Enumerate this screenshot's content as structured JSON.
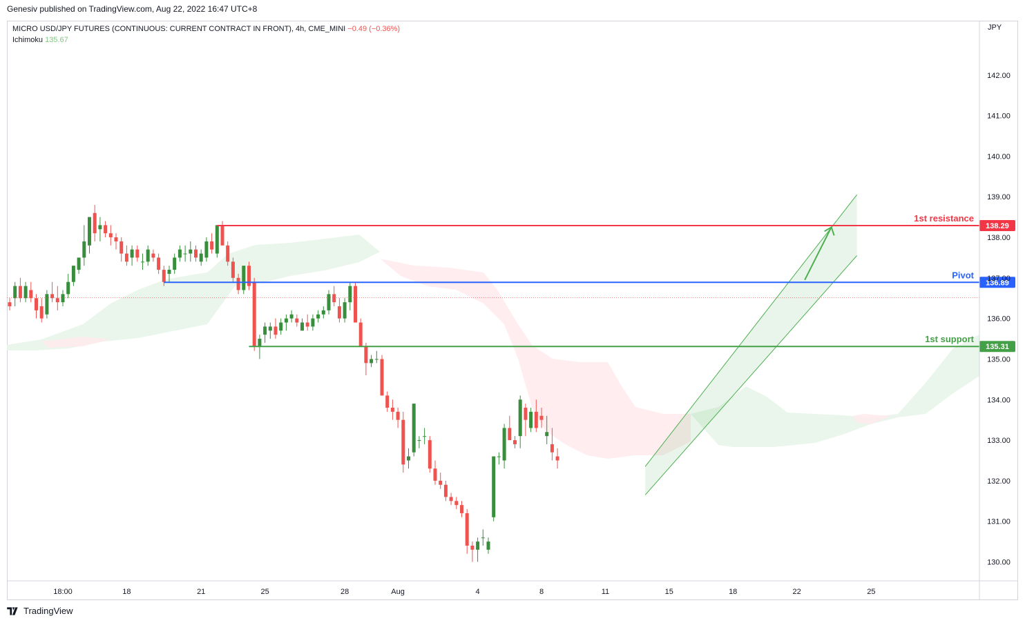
{
  "publisher": "Genesiv published on TradingView.com, Aug 22, 2022 16:47 UTC+8",
  "legend": {
    "symbol": "MICRO USD/JPY FUTURES (CONTINUOUS: CURRENT CONTRACT IN FRONT), 4h, CME_MINI",
    "change": "−0.49 (−0.36%)",
    "indicator_name": "Ichimoku",
    "indicator_value": "135.67"
  },
  "currency": "JPY",
  "footer": {
    "brand": "TradingView"
  },
  "colors": {
    "up": "#388e3c",
    "down": "#ef5350",
    "resistance": "#f23645",
    "pivot": "#2962ff",
    "support": "#43a047",
    "channel": "#4caf50",
    "cloud_bull": "#e8f5e9",
    "cloud_bear": "#ffebee"
  },
  "chart_data": {
    "type": "candlestick",
    "ylim": [
      129.6,
      143.0
    ],
    "y_ticks": [
      "142.00",
      "141.00",
      "140.00",
      "139.00",
      "138.00",
      "137.00",
      "136.00",
      "135.00",
      "134.00",
      "133.00",
      "132.00",
      "131.00",
      "130.00"
    ],
    "x_ticks": [
      {
        "label": "18:00",
        "i": 10
      },
      {
        "label": "18",
        "i": 22
      },
      {
        "label": "21",
        "i": 36
      },
      {
        "label": "25",
        "i": 48
      },
      {
        "label": "28",
        "i": 63
      },
      {
        "label": "Aug",
        "i": 73
      },
      {
        "label": "4",
        "i": 88
      },
      {
        "label": "8",
        "i": 100
      },
      {
        "label": "11",
        "i": 112
      },
      {
        "label": "15",
        "i": 124
      },
      {
        "label": "18",
        "i": 136
      },
      {
        "label": "22",
        "i": 148
      },
      {
        "label": "25",
        "i": 162
      }
    ],
    "levels": [
      {
        "name": "1st resistance",
        "value": 138.29,
        "tag": "138.29",
        "color": "#f23645",
        "start_i": 39
      },
      {
        "name": "Pivot",
        "value": 136.89,
        "tag": "136.89",
        "color": "#2962ff",
        "start_i": 29
      },
      {
        "name": "1st support",
        "value": 135.31,
        "tag": "135.31",
        "color": "#43a047",
        "start_i": 45
      }
    ],
    "last_price": 136.51,
    "channel": {
      "lower": [
        [
          119.5,
          131.65
        ],
        [
          159.3,
          137.55
        ]
      ],
      "upper": [
        [
          119.5,
          132.35
        ],
        [
          159.3,
          139.05
        ]
      ]
    },
    "arrow": {
      "from": [
        149.5,
        136.95
      ],
      "to": [
        154.5,
        138.25
      ]
    },
    "ohlc": [
      [
        136.4,
        136.5,
        136.2,
        136.3
      ],
      [
        136.5,
        136.9,
        136.3,
        136.8
      ],
      [
        136.8,
        137.0,
        136.4,
        136.5
      ],
      [
        136.5,
        136.9,
        136.4,
        136.8
      ],
      [
        136.7,
        136.9,
        136.4,
        136.5
      ],
      [
        136.5,
        136.6,
        136.0,
        136.2
      ],
      [
        136.3,
        136.5,
        135.9,
        136.0
      ],
      [
        136.1,
        136.7,
        136.0,
        136.6
      ],
      [
        136.6,
        136.9,
        136.4,
        136.5
      ],
      [
        136.5,
        136.8,
        136.2,
        136.4
      ],
      [
        136.4,
        136.7,
        136.3,
        136.6
      ],
      [
        136.6,
        137.1,
        136.5,
        136.9
      ],
      [
        136.9,
        137.3,
        136.8,
        137.3
      ],
      [
        137.2,
        137.5,
        137.1,
        137.5
      ],
      [
        137.5,
        138.3,
        137.3,
        137.9
      ],
      [
        137.8,
        138.5,
        137.6,
        138.5
      ],
      [
        138.6,
        138.8,
        137.9,
        138.1
      ],
      [
        138.2,
        138.5,
        137.9,
        138.3
      ],
      [
        138.3,
        138.4,
        138.0,
        138.1
      ],
      [
        138.1,
        138.3,
        137.8,
        138.0
      ],
      [
        138.0,
        138.1,
        137.7,
        137.9
      ],
      [
        137.9,
        138.0,
        137.4,
        137.6
      ],
      [
        137.6,
        137.8,
        137.3,
        137.4
      ],
      [
        137.5,
        137.8,
        137.3,
        137.7
      ],
      [
        137.7,
        137.8,
        137.4,
        137.5
      ],
      [
        137.4,
        137.6,
        137.2,
        137.4
      ],
      [
        137.4,
        137.8,
        137.3,
        137.7
      ],
      [
        137.6,
        137.7,
        137.4,
        137.5
      ],
      [
        137.5,
        137.6,
        137.1,
        137.2
      ],
      [
        137.2,
        137.3,
        136.8,
        136.9
      ],
      [
        137.1,
        137.3,
        136.9,
        137.2
      ],
      [
        137.2,
        137.6,
        137.1,
        137.5
      ],
      [
        137.5,
        137.8,
        137.4,
        137.7
      ],
      [
        137.6,
        137.8,
        137.4,
        137.6
      ],
      [
        137.6,
        137.9,
        137.4,
        137.7
      ],
      [
        137.7,
        137.8,
        137.4,
        137.5
      ],
      [
        137.4,
        137.7,
        137.3,
        137.6
      ],
      [
        137.5,
        138.0,
        137.4,
        137.9
      ],
      [
        137.9,
        138.1,
        137.6,
        137.7
      ],
      [
        137.6,
        138.3,
        137.5,
        138.3
      ],
      [
        138.3,
        138.4,
        137.8,
        137.8
      ],
      [
        137.8,
        137.9,
        137.3,
        137.4
      ],
      [
        137.4,
        137.5,
        136.9,
        137.0
      ],
      [
        137.0,
        137.1,
        136.6,
        136.7
      ],
      [
        136.7,
        137.3,
        136.6,
        137.3
      ],
      [
        137.3,
        137.4,
        136.7,
        136.8
      ],
      [
        136.9,
        137.0,
        135.2,
        135.3
      ],
      [
        135.3,
        135.6,
        135.0,
        135.5
      ],
      [
        135.6,
        135.9,
        135.4,
        135.8
      ],
      [
        135.7,
        135.9,
        135.5,
        135.8
      ],
      [
        135.8,
        136.0,
        135.5,
        135.6
      ],
      [
        135.7,
        136.0,
        135.6,
        135.9
      ],
      [
        135.9,
        136.1,
        135.7,
        136.0
      ],
      [
        136.0,
        136.2,
        135.9,
        136.1
      ],
      [
        136.0,
        136.1,
        135.8,
        135.9
      ],
      [
        135.7,
        136.0,
        135.7,
        135.9
      ],
      [
        135.9,
        136.1,
        135.7,
        135.8
      ],
      [
        135.8,
        136.1,
        135.7,
        136.0
      ],
      [
        136.0,
        136.2,
        135.9,
        136.1
      ],
      [
        136.1,
        136.3,
        136.0,
        136.2
      ],
      [
        136.2,
        136.7,
        136.1,
        136.6
      ],
      [
        136.6,
        136.8,
        136.3,
        136.4
      ],
      [
        136.3,
        136.5,
        135.9,
        136.0
      ],
      [
        136.0,
        136.5,
        135.9,
        136.4
      ],
      [
        136.4,
        136.9,
        136.2,
        136.8
      ],
      [
        136.8,
        136.9,
        135.9,
        135.9
      ],
      [
        135.9,
        136.0,
        135.3,
        135.3
      ],
      [
        135.3,
        135.4,
        134.6,
        134.9
      ],
      [
        134.9,
        135.1,
        134.8,
        135.0
      ],
      [
        135.0,
        135.2,
        134.9,
        135.0
      ],
      [
        135.0,
        135.1,
        134.1,
        134.1
      ],
      [
        134.1,
        134.2,
        133.7,
        133.8
      ],
      [
        133.8,
        134.0,
        133.5,
        133.7
      ],
      [
        133.7,
        133.8,
        133.3,
        133.5
      ],
      [
        133.5,
        133.7,
        132.2,
        132.4
      ],
      [
        132.5,
        132.8,
        132.3,
        132.6
      ],
      [
        132.7,
        133.9,
        132.6,
        133.9
      ],
      [
        133.0,
        133.1,
        132.8,
        133.0
      ],
      [
        133.1,
        133.3,
        132.9,
        133.1
      ],
      [
        133.0,
        133.1,
        132.2,
        132.3
      ],
      [
        132.3,
        132.5,
        131.9,
        132.0
      ],
      [
        132.0,
        132.2,
        131.8,
        131.9
      ],
      [
        131.9,
        132.0,
        131.5,
        131.6
      ],
      [
        131.6,
        131.7,
        131.4,
        131.5
      ],
      [
        131.5,
        131.6,
        131.3,
        131.4
      ],
      [
        131.4,
        131.5,
        131.1,
        131.2
      ],
      [
        131.2,
        131.3,
        130.2,
        130.4
      ],
      [
        130.4,
        130.5,
        130.0,
        130.3
      ],
      [
        130.3,
        130.6,
        130.0,
        130.5
      ],
      [
        130.6,
        130.8,
        130.4,
        130.6
      ],
      [
        130.3,
        130.6,
        130.2,
        130.5
      ],
      [
        131.1,
        132.6,
        131.0,
        132.6
      ],
      [
        132.6,
        132.7,
        132.4,
        132.6
      ],
      [
        132.5,
        133.4,
        132.3,
        133.3
      ],
      [
        133.3,
        133.6,
        133.0,
        133.0
      ],
      [
        133.0,
        133.1,
        132.8,
        132.9
      ],
      [
        133.1,
        134.1,
        132.8,
        134.0
      ],
      [
        133.8,
        133.9,
        133.1,
        133.5
      ],
      [
        133.3,
        133.8,
        133.2,
        133.7
      ],
      [
        133.7,
        134.0,
        133.2,
        133.3
      ],
      [
        133.6,
        133.8,
        133.3,
        133.5
      ],
      [
        133.1,
        133.6,
        132.9,
        133.2
      ],
      [
        132.9,
        133.3,
        132.5,
        132.7
      ],
      [
        132.6,
        132.8,
        132.3,
        132.5
      ]
    ]
  }
}
